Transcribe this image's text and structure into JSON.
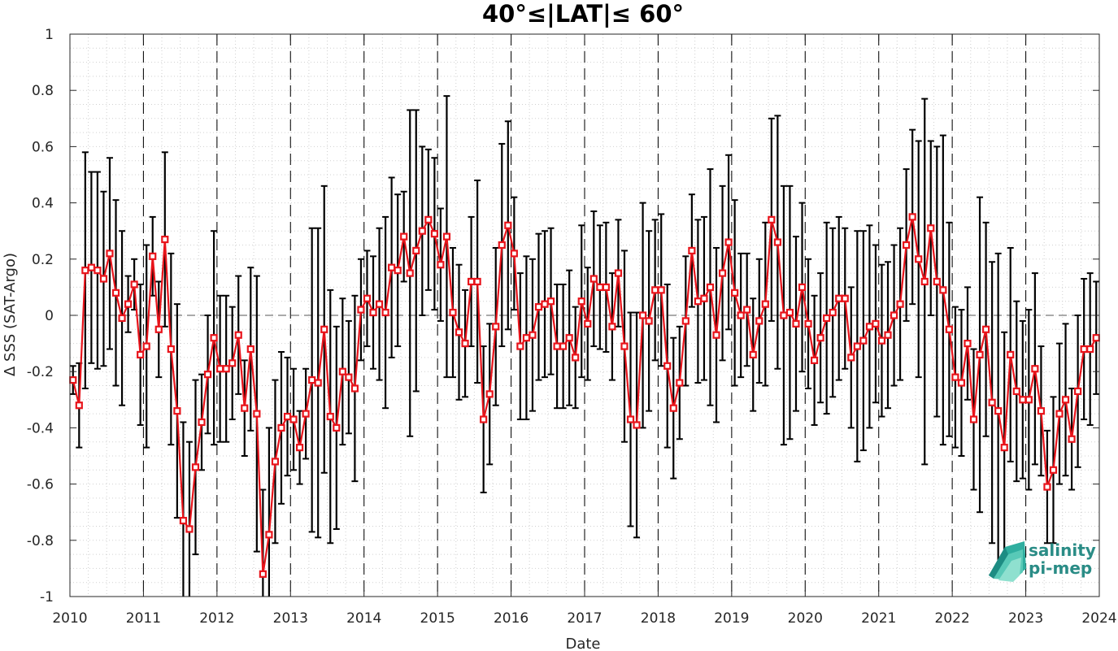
{
  "chart_data": {
    "type": "line",
    "title": "40°≤|LAT|≤ 60°",
    "xlabel": "Date",
    "ylabel": "Δ SSS (SAT-Argo)",
    "xlim": [
      2010,
      2024
    ],
    "ylim": [
      -1,
      1
    ],
    "x_ticks": [
      "2010",
      "2011",
      "2012",
      "2013",
      "2014",
      "2015",
      "2016",
      "2017",
      "2018",
      "2019",
      "2020",
      "2021",
      "2022",
      "2023",
      "2024"
    ],
    "y_ticks": [
      "1",
      "0.8",
      "0.6",
      "0.4",
      "0.2",
      "0",
      "-0.2",
      "-0.4",
      "-0.6",
      "-0.8",
      "-1"
    ],
    "grid": "dotted",
    "year_lines": "dashed vertical at each year",
    "zero_line": "dashed horizontal at 0",
    "series": [
      {
        "color": "#e8141b",
        "errorbar_color": "#000000",
        "x_start": "2010-01",
        "step": "monthly",
        "values": [
          -0.23,
          -0.32,
          0.16,
          0.17,
          0.16,
          0.13,
          0.22,
          0.08,
          -0.01,
          0.04,
          0.11,
          -0.14,
          -0.11,
          0.21,
          -0.05,
          0.27,
          -0.12,
          -0.34,
          -0.73,
          -0.76,
          -0.54,
          -0.38,
          -0.21,
          -0.08,
          -0.19,
          -0.19,
          -0.17,
          -0.07,
          -0.33,
          -0.12,
          -0.35,
          -0.92,
          -0.78,
          -0.52,
          -0.4,
          -0.36,
          -0.37,
          -0.47,
          -0.35,
          -0.23,
          -0.24,
          -0.05,
          -0.36,
          -0.4,
          -0.2,
          -0.22,
          -0.26,
          0.02,
          0.06,
          0.01,
          0.04,
          0.01,
          0.17,
          0.16,
          0.28,
          0.15,
          0.23,
          0.3,
          0.34,
          0.29,
          0.18,
          0.28,
          0.01,
          -0.06,
          -0.1,
          0.12,
          0.12,
          -0.37,
          -0.28,
          -0.04,
          0.25,
          0.32,
          0.22,
          -0.11,
          -0.08,
          -0.07,
          0.03,
          0.04,
          0.05,
          -0.11,
          -0.11,
          -0.08,
          -0.15,
          0.05,
          -0.03,
          0.13,
          0.1,
          0.1,
          -0.04,
          0.15,
          -0.11,
          -0.37,
          -0.39,
          0.0,
          -0.02,
          0.09,
          0.09,
          -0.18,
          -0.33,
          -0.24,
          -0.02,
          0.23,
          0.05,
          0.06,
          0.1,
          -0.07,
          0.15,
          0.26,
          0.08,
          0.0,
          0.02,
          -0.14,
          -0.02,
          0.04,
          0.34,
          0.26,
          0.0,
          0.01,
          -0.03,
          0.1,
          -0.03,
          -0.16,
          -0.08,
          -0.01,
          0.01,
          0.06,
          0.06,
          -0.15,
          -0.11,
          -0.09,
          -0.04,
          -0.03,
          -0.09,
          -0.07,
          0.0,
          0.04,
          0.25,
          0.35,
          0.2,
          0.12,
          0.31,
          0.12,
          0.09,
          -0.05,
          -0.22,
          -0.24,
          -0.1,
          -0.37,
          -0.14,
          -0.05,
          -0.31,
          -0.34,
          -0.47,
          -0.14,
          -0.27,
          -0.3,
          -0.3,
          -0.19,
          -0.34,
          -0.61,
          -0.55,
          -0.35,
          -0.3,
          -0.44,
          -0.27,
          -0.12,
          -0.12,
          -0.08
        ],
        "errors": [
          0.05,
          0.15,
          0.42,
          0.34,
          0.35,
          0.31,
          0.34,
          0.33,
          0.31,
          0.1,
          0.09,
          0.25,
          0.36,
          0.14,
          0.17,
          0.31,
          0.34,
          0.38,
          0.35,
          0.31,
          0.31,
          0.17,
          0.21,
          0.38,
          0.26,
          0.26,
          0.2,
          0.21,
          0.17,
          0.29,
          0.49,
          0.3,
          0.38,
          0.29,
          0.27,
          0.21,
          0.18,
          0.13,
          0.16,
          0.54,
          0.55,
          0.51,
          0.45,
          0.36,
          0.26,
          0.2,
          0.33,
          0.18,
          0.17,
          0.2,
          0.27,
          0.34,
          0.32,
          0.27,
          0.16,
          0.58,
          0.5,
          0.3,
          0.25,
          0.27,
          0.2,
          0.5,
          0.23,
          0.24,
          0.19,
          0.23,
          0.36,
          0.26,
          0.25,
          0.28,
          0.36,
          0.37,
          0.2,
          0.26,
          0.29,
          0.27,
          0.26,
          0.26,
          0.26,
          0.22,
          0.22,
          0.24,
          0.18,
          0.27,
          0.2,
          0.24,
          0.22,
          0.23,
          0.19,
          0.19,
          0.34,
          0.38,
          0.4,
          0.4,
          0.32,
          0.25,
          0.27,
          0.29,
          0.25,
          0.2,
          0.23,
          0.2,
          0.29,
          0.29,
          0.42,
          0.31,
          0.31,
          0.31,
          0.33,
          0.22,
          0.2,
          0.2,
          0.22,
          0.29,
          0.36,
          0.45,
          0.46,
          0.45,
          0.31,
          0.3,
          0.23,
          0.23,
          0.23,
          0.34,
          0.3,
          0.29,
          0.25,
          0.25,
          0.41,
          0.39,
          0.36,
          0.28,
          0.27,
          0.26,
          0.25,
          0.27,
          0.27,
          0.31,
          0.42,
          0.65,
          0.31,
          0.48,
          0.55,
          0.38,
          0.25,
          0.26,
          0.2,
          0.25,
          0.56,
          0.38,
          0.5,
          0.56,
          0.41,
          0.38,
          0.32,
          0.28,
          0.32,
          0.34,
          0.23,
          0.2,
          0.26,
          0.25,
          0.27,
          0.18,
          0.27,
          0.25,
          0.27,
          0.2
        ]
      }
    ]
  },
  "logo": {
    "line1": "salinity",
    "line2": "pi-mep"
  }
}
